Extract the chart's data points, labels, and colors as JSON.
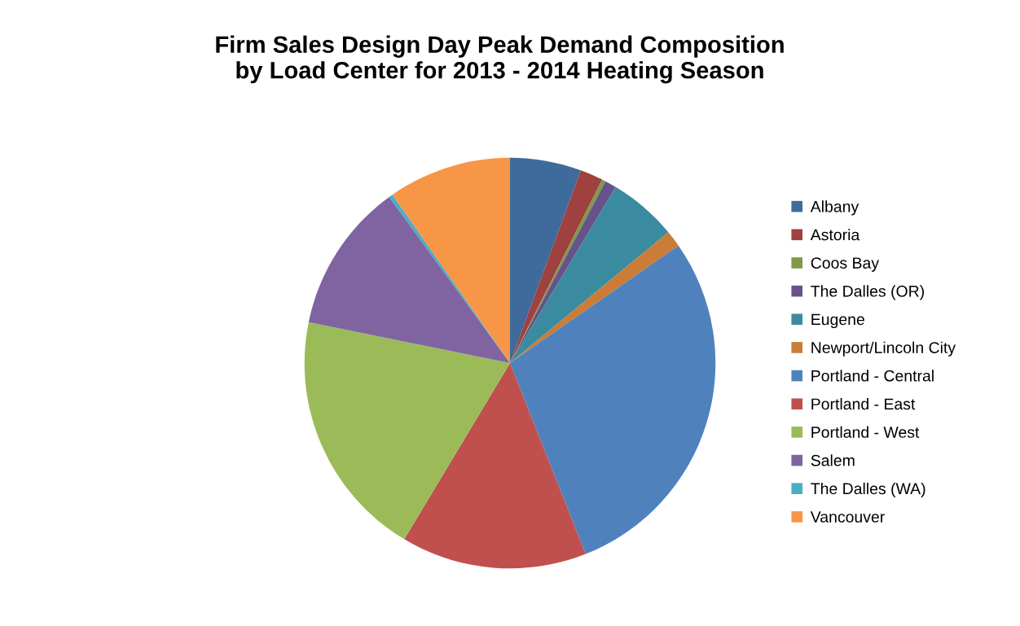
{
  "chart_data": {
    "type": "pie",
    "title": "Firm Sales Design Day Peak Demand Composition\nby Load Center for 2013 - 2014 Heating Season",
    "categories": [
      "Albany",
      "Astoria",
      "Coos Bay",
      "The Dalles (OR)",
      "Eugene",
      "Newport/Lincoln City",
      "Portland - Central",
      "Portland - East",
      "Portland - West",
      "Salem",
      "The Dalles (WA)",
      "Vancouver"
    ],
    "values": [
      5.6,
      1.8,
      0.3,
      0.9,
      5.4,
      1.3,
      28.7,
      14.6,
      19.6,
      11.8,
      0.3,
      9.7
    ],
    "colors": [
      "#3f6b9c",
      "#9e413f",
      "#7f9a48",
      "#67528a",
      "#3b8ba0",
      "#cb7c37",
      "#4f81bd",
      "#c0504d",
      "#9bbb59",
      "#8064a2",
      "#4bacc6",
      "#f79646"
    ],
    "legend": "right"
  }
}
